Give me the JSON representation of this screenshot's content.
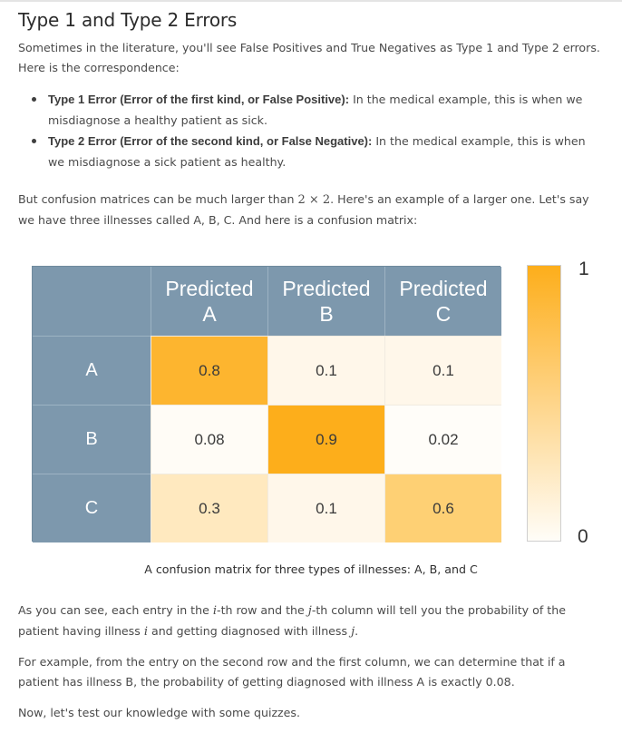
{
  "title": "Type 1 and Type 2 Errors",
  "intro": "Sometimes in the literature, you'll see False Positives and True Negatives as Type 1 and Type 2 errors. Here is the correspondence:",
  "bullets": [
    {
      "term": "Type 1 Error (Error of the first kind, or False Positive):",
      "text": " In the medical example, this is when we misdiagnose a healthy patient as sick."
    },
    {
      "term": "Type 2 Error (Error of the second kind, or False Negative):",
      "text": " In the medical example, this is when we misdiagnose a sick patient as healthy."
    }
  ],
  "larger": {
    "before": "But confusion matrices can be much larger than ",
    "math_n": "2",
    "math_times": " × ",
    "math_m": "2",
    "after": ". Here's an example of a larger one. Let's say we have three illnesses called A, B, C. And here is a confusion matrix:"
  },
  "matrix": {
    "col_headers": [
      "Predicted\nA",
      "Predicted\nB",
      "Predicted\nC"
    ],
    "row_headers": [
      "A",
      "B",
      "C"
    ],
    "values": [
      [
        "0.8",
        "0.1",
        "0.1"
      ],
      [
        "0.08",
        "0.9",
        "0.02"
      ],
      [
        "0.3",
        "0.1",
        "0.6"
      ]
    ],
    "cell_colors": [
      [
        "#fdb52f",
        "#fff7ea",
        "#fff7ea"
      ],
      [
        "#fffcf6",
        "#fdae1b",
        "#fffdf9"
      ],
      [
        "#ffe9bf",
        "#fff7ea",
        "#fed074"
      ]
    ]
  },
  "colorbar": {
    "max_label": "1",
    "min_label": "0",
    "color_high": "#fdae1b",
    "color_low": "#fffdf8"
  },
  "caption": "A confusion matrix for three types of illnesses: A, B, and C",
  "ij_paragraph": {
    "p1": "As you can see, each entry in the ",
    "i1": "i",
    "p2": "-th row and the ",
    "j1": "j",
    "p3": "-th column will tell you the probability of the patient having illness ",
    "i2": "i",
    "p4": " and getting diagnosed with illness ",
    "j2": "j",
    "p5": "."
  },
  "example": "For example, from the entry on the second row and the first column, we can determine that if a patient has illness B, the probability of getting diagnosed with illness A is exactly 0.08.",
  "quiz": "Now, let's test our knowledge with some quizzes."
}
